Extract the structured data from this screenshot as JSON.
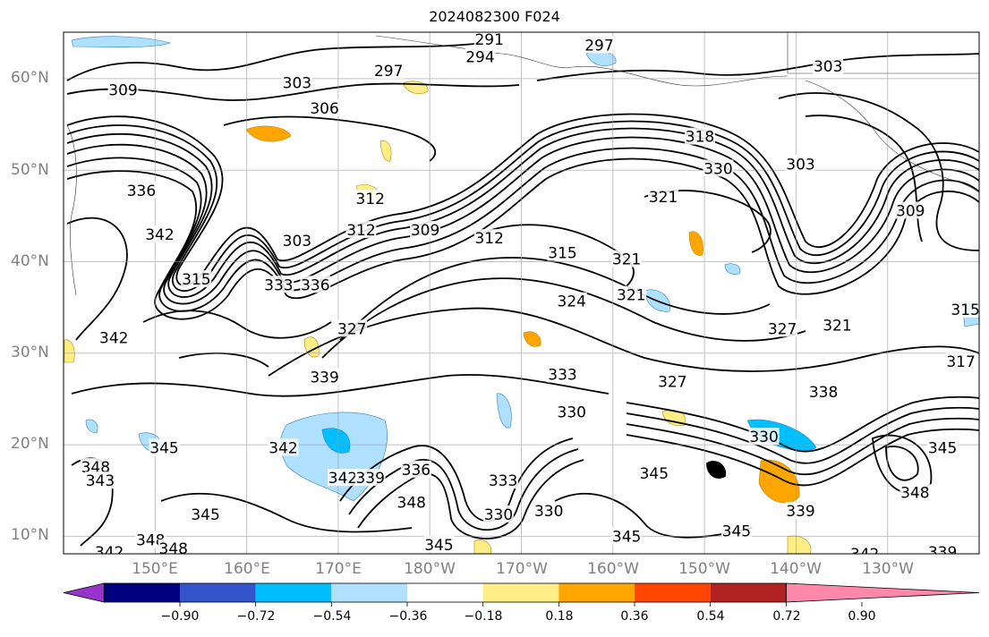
{
  "title": "2024082300 F024",
  "map": {
    "projection": "PlateCarree",
    "lon_range": [
      140,
      240
    ],
    "lat_range": [
      8,
      65
    ],
    "gridlines": true,
    "coastlines": true,
    "lat_ticks": [
      {
        "value": 10,
        "label": "10°N"
      },
      {
        "value": 20,
        "label": "20°N"
      },
      {
        "value": 30,
        "label": "30°N"
      },
      {
        "value": 40,
        "label": "40°N"
      },
      {
        "value": 50,
        "label": "50°N"
      },
      {
        "value": 60,
        "label": "60°N"
      }
    ],
    "lon_ticks": [
      {
        "value": 150,
        "label": "150°E"
      },
      {
        "value": 160,
        "label": "160°E"
      },
      {
        "value": 170,
        "label": "170°E"
      },
      {
        "value": 180,
        "label": "180°W"
      },
      {
        "value": 190,
        "label": "170°W"
      },
      {
        "value": 200,
        "label": "160°W"
      },
      {
        "value": 210,
        "label": "150°W"
      },
      {
        "value": 220,
        "label": "140°W"
      },
      {
        "value": 230,
        "label": "130°W"
      }
    ],
    "contour_labels": [
      {
        "text": "291",
        "lon": 186.5,
        "lat": 64.2
      },
      {
        "text": "294",
        "lon": 185.5,
        "lat": 62.3
      },
      {
        "text": "297",
        "lon": 198.5,
        "lat": 63.6
      },
      {
        "text": "297",
        "lon": 175.5,
        "lat": 60.8
      },
      {
        "text": "303",
        "lon": 223.5,
        "lat": 61.3
      },
      {
        "text": "309",
        "lon": 146.5,
        "lat": 58.7
      },
      {
        "text": "306",
        "lon": 168.5,
        "lat": 56.7
      },
      {
        "text": "303",
        "lon": 165.5,
        "lat": 59.5
      },
      {
        "text": "318",
        "lon": 209.5,
        "lat": 53.6
      },
      {
        "text": "330",
        "lon": 211.5,
        "lat": 50.1
      },
      {
        "text": "303",
        "lon": 220.5,
        "lat": 50.6
      },
      {
        "text": "309",
        "lon": 232.5,
        "lat": 45.5
      },
      {
        "text": "336",
        "lon": 148.5,
        "lat": 47.7
      },
      {
        "text": "342",
        "lon": 150.5,
        "lat": 42.9
      },
      {
        "text": "312",
        "lon": 173.5,
        "lat": 46.8
      },
      {
        "text": "312",
        "lon": 172.5,
        "lat": 43.4
      },
      {
        "text": "309",
        "lon": 179.5,
        "lat": 43.4
      },
      {
        "text": "303",
        "lon": 165.5,
        "lat": 42.2
      },
      {
        "text": "321",
        "lon": 205.5,
        "lat": 47.0
      },
      {
        "text": "312",
        "lon": 186.5,
        "lat": 42.5
      },
      {
        "text": "315",
        "lon": 194.5,
        "lat": 40.9
      },
      {
        "text": "321",
        "lon": 201.5,
        "lat": 40.2
      },
      {
        "text": "315",
        "lon": 154.5,
        "lat": 38.0
      },
      {
        "text": "333",
        "lon": 163.5,
        "lat": 37.4
      },
      {
        "text": "336",
        "lon": 167.5,
        "lat": 37.4
      },
      {
        "text": "324",
        "lon": 195.5,
        "lat": 35.6
      },
      {
        "text": "321",
        "lon": 202.0,
        "lat": 36.3
      },
      {
        "text": "327",
        "lon": 171.5,
        "lat": 32.6
      },
      {
        "text": "327",
        "lon": 218.5,
        "lat": 32.6
      },
      {
        "text": "321",
        "lon": 224.5,
        "lat": 33.0
      },
      {
        "text": "342",
        "lon": 145.5,
        "lat": 31.6
      },
      {
        "text": "315",
        "lon": 238.5,
        "lat": 34.7
      },
      {
        "text": "317",
        "lon": 238.0,
        "lat": 29.0
      },
      {
        "text": "333",
        "lon": 194.5,
        "lat": 27.6
      },
      {
        "text": "339",
        "lon": 168.5,
        "lat": 27.3
      },
      {
        "text": "327",
        "lon": 206.5,
        "lat": 26.8
      },
      {
        "text": "338",
        "lon": 223.0,
        "lat": 25.7
      },
      {
        "text": "330",
        "lon": 195.5,
        "lat": 23.5
      },
      {
        "text": "330",
        "lon": 216.5,
        "lat": 20.8
      },
      {
        "text": "345",
        "lon": 151.0,
        "lat": 19.6
      },
      {
        "text": "342",
        "lon": 164.0,
        "lat": 19.6
      },
      {
        "text": "345",
        "lon": 236.0,
        "lat": 19.6
      },
      {
        "text": "348",
        "lon": 143.5,
        "lat": 17.5
      },
      {
        "text": "343",
        "lon": 144.0,
        "lat": 16.0
      },
      {
        "text": "342",
        "lon": 170.5,
        "lat": 16.3
      },
      {
        "text": "339",
        "lon": 173.5,
        "lat": 16.3
      },
      {
        "text": "336",
        "lon": 178.5,
        "lat": 17.2
      },
      {
        "text": "345",
        "lon": 204.5,
        "lat": 16.8
      },
      {
        "text": "333",
        "lon": 188.0,
        "lat": 16.0
      },
      {
        "text": "348",
        "lon": 233.0,
        "lat": 14.7
      },
      {
        "text": "348",
        "lon": 178.0,
        "lat": 13.6
      },
      {
        "text": "330",
        "lon": 187.5,
        "lat": 12.3
      },
      {
        "text": "330",
        "lon": 193.0,
        "lat": 12.7
      },
      {
        "text": "339",
        "lon": 220.5,
        "lat": 12.7
      },
      {
        "text": "345",
        "lon": 155.5,
        "lat": 12.3
      },
      {
        "text": "345",
        "lon": 201.5,
        "lat": 9.9
      },
      {
        "text": "345",
        "lon": 213.5,
        "lat": 10.5
      },
      {
        "text": "348",
        "lon": 149.5,
        "lat": 9.5
      },
      {
        "text": "345",
        "lon": 181.0,
        "lat": 9.0
      },
      {
        "text": "348",
        "lon": 152.0,
        "lat": 8.6
      },
      {
        "text": "342",
        "lon": 145.0,
        "lat": 8.2
      },
      {
        "text": "342",
        "lon": 227.5,
        "lat": 8.0
      },
      {
        "text": "339",
        "lon": 236.0,
        "lat": 8.2
      }
    ]
  },
  "colorbar": {
    "extend": "both",
    "bins": [
      {
        "color": "#9933cc",
        "label": "under"
      },
      {
        "color": "#000080",
        "label": "-0.90 to -0.72"
      },
      {
        "color": "#3355cc",
        "label": "-0.72 to -0.54"
      },
      {
        "color": "#00bfff",
        "label": "-0.54 to -0.36"
      },
      {
        "color": "#b0e0ff",
        "label": "-0.36 to -0.18"
      },
      {
        "color": "#ffffff",
        "label": "-0.18 to 0.18"
      },
      {
        "color": "#ffee88",
        "label": "0.18 to 0.36"
      },
      {
        "color": "#ffa500",
        "label": "0.36 to 0.54"
      },
      {
        "color": "#ff4500",
        "label": "0.54 to 0.72"
      },
      {
        "color": "#b22222",
        "label": "0.72 to 0.90"
      },
      {
        "color": "#ff88aa",
        "label": "over"
      }
    ],
    "tick_labels": [
      "−0.90",
      "−0.72",
      "−0.54",
      "−0.36",
      "−0.18",
      "0.18",
      "0.36",
      "0.54",
      "0.72",
      "0.90"
    ]
  }
}
